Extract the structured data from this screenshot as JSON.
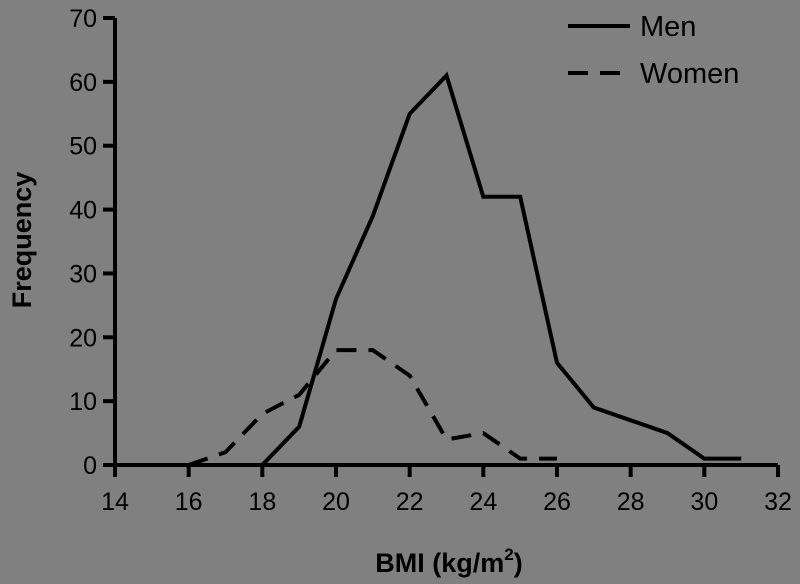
{
  "chart_data": {
    "type": "line",
    "xlabel": "BMI (kg/m",
    "xlabel_superscript": "2",
    "xlabel_suffix": ")",
    "ylabel": "Frequency",
    "xlim": [
      14,
      32
    ],
    "ylim": [
      0,
      70
    ],
    "x_ticks": [
      14,
      16,
      18,
      20,
      22,
      24,
      26,
      28,
      30,
      32
    ],
    "y_ticks": [
      0,
      10,
      20,
      30,
      40,
      50,
      60,
      70
    ],
    "grid": false,
    "legend": "top-right",
    "series": [
      {
        "name": "Men",
        "style": "solid",
        "color": "#000000",
        "points": [
          [
            18,
            0
          ],
          [
            19,
            6
          ],
          [
            20,
            26
          ],
          [
            21,
            39
          ],
          [
            22,
            55
          ],
          [
            23,
            61
          ],
          [
            24,
            42
          ],
          [
            25,
            42
          ],
          [
            26,
            16
          ],
          [
            27,
            9
          ],
          [
            28,
            7
          ],
          [
            29,
            5
          ],
          [
            30,
            1
          ],
          [
            31,
            1
          ]
        ]
      },
      {
        "name": "Women",
        "style": "dashed",
        "color": "#000000",
        "points": [
          [
            16,
            0
          ],
          [
            17,
            2
          ],
          [
            18,
            8
          ],
          [
            19,
            11
          ],
          [
            20,
            18
          ],
          [
            21,
            18
          ],
          [
            22,
            14
          ],
          [
            23,
            4
          ],
          [
            24,
            5
          ],
          [
            25,
            1
          ],
          [
            26,
            1
          ]
        ]
      }
    ]
  }
}
